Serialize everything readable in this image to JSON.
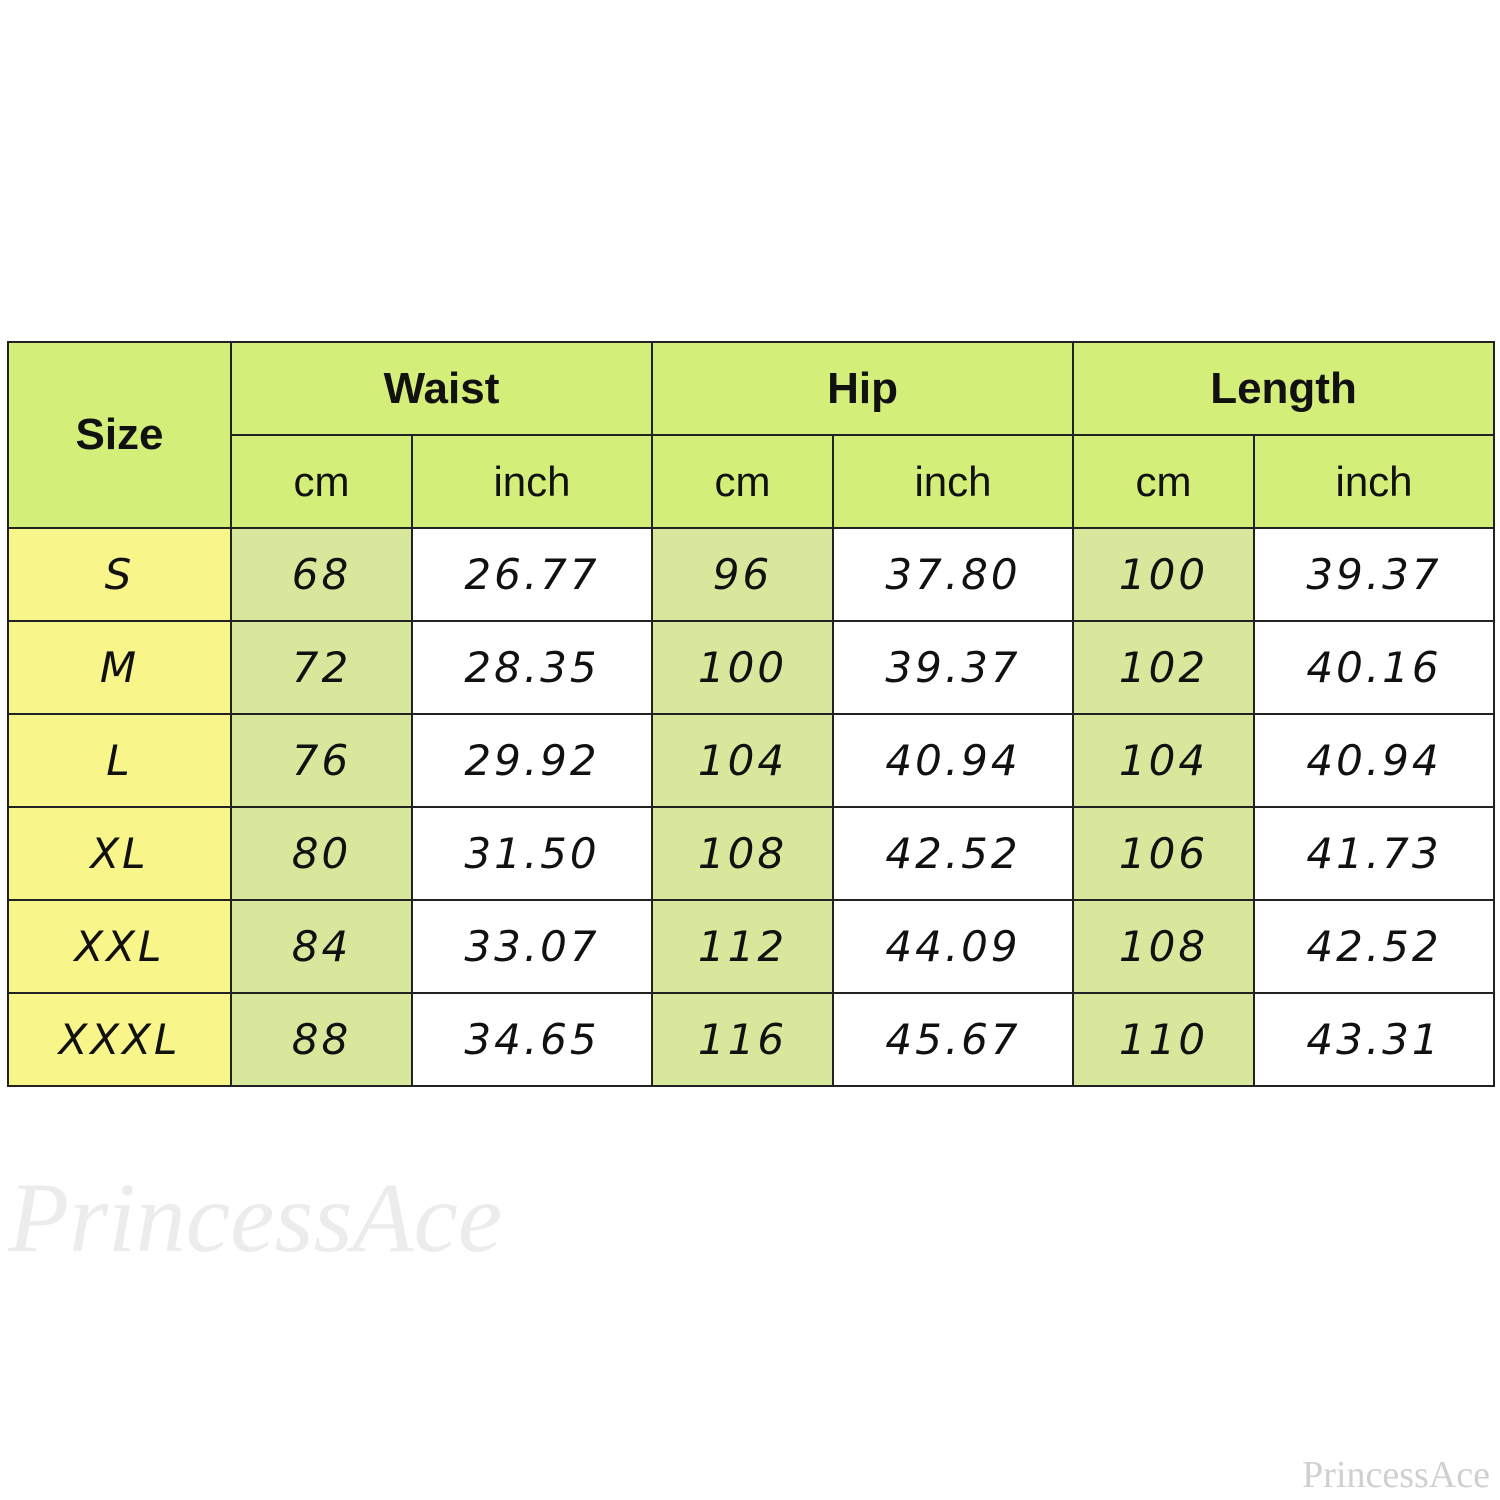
{
  "chart_data": {
    "type": "table",
    "size_header": "Size",
    "groups": [
      "Waist",
      "Hip",
      "Length"
    ],
    "units": [
      "cm",
      "inch"
    ],
    "rows": [
      {
        "size": "S",
        "values": [
          "68",
          "26.77",
          "96",
          "37.80",
          "100",
          "39.37"
        ]
      },
      {
        "size": "M",
        "values": [
          "72",
          "28.35",
          "100",
          "39.37",
          "102",
          "40.16"
        ]
      },
      {
        "size": "L",
        "values": [
          "76",
          "29.92",
          "104",
          "40.94",
          "104",
          "40.94"
        ]
      },
      {
        "size": "XL",
        "values": [
          "80",
          "31.50",
          "108",
          "42.52",
          "106",
          "41.73"
        ]
      },
      {
        "size": "XXL",
        "values": [
          "84",
          "33.07",
          "112",
          "44.09",
          "108",
          "42.52"
        ]
      },
      {
        "size": "XXXL",
        "values": [
          "88",
          "34.65",
          "116",
          "45.67",
          "110",
          "43.31"
        ]
      }
    ]
  },
  "colors": {
    "header": "#d4ee7a",
    "size_column": "#f8f68a",
    "cm_column": "#d7e89c",
    "inch_column": "#ffffff"
  },
  "watermark": {
    "logo": "PrincessAce",
    "corner": "PrincessAce"
  }
}
